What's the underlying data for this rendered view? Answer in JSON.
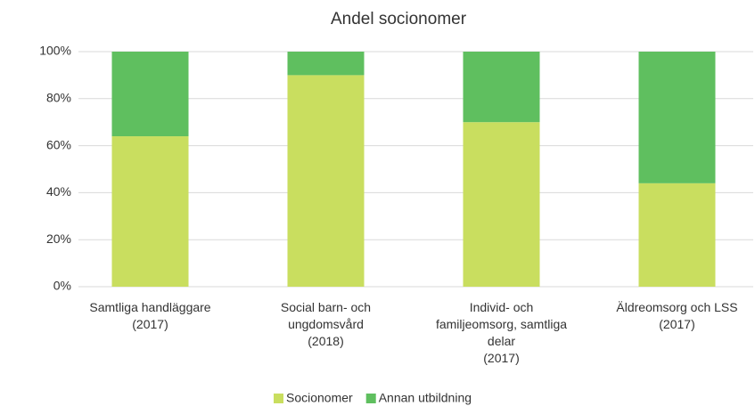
{
  "chart_data": {
    "type": "stacked_bar",
    "title": "Andel socionomer",
    "categories": [
      [
        "Samtliga handläggare",
        "(2017)"
      ],
      [
        "Social barn- och",
        "ungdomsvård",
        "(2018)"
      ],
      [
        "Individ- och",
        "familjeomsorg, samtliga",
        "delar",
        "(2017)"
      ],
      [
        "Äldreomsorg och LSS",
        "(2017)"
      ]
    ],
    "series": [
      {
        "name": "Socionomer",
        "color": "#c9de5f",
        "values": [
          64,
          90,
          70,
          44
        ]
      },
      {
        "name": "Annan utbildning",
        "color": "#5fbf5f",
        "values": [
          36,
          10,
          30,
          56
        ]
      }
    ],
    "ylim": [
      0,
      100
    ],
    "yticks": [
      {
        "value": 0,
        "label": "0%"
      },
      {
        "value": 20,
        "label": "20%"
      },
      {
        "value": 40,
        "label": "40%"
      },
      {
        "value": 60,
        "label": "60%"
      },
      {
        "value": 80,
        "label": "80%"
      },
      {
        "value": 100,
        "label": "100%"
      }
    ],
    "grid": true,
    "legend": "bottom"
  }
}
